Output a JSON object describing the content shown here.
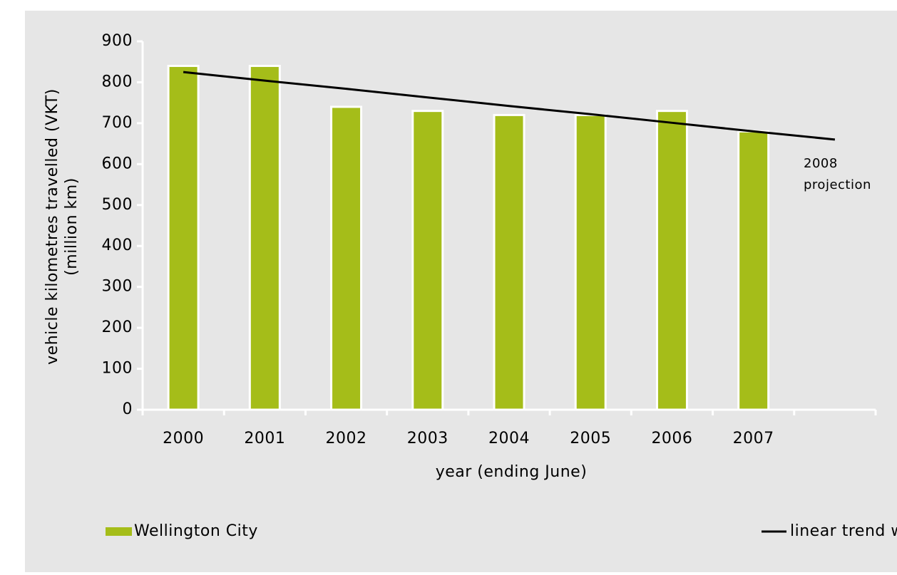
{
  "chart_data": {
    "type": "bar",
    "categories": [
      "2000",
      "2001",
      "2002",
      "2003",
      "2004",
      "2005",
      "2006",
      "2007",
      null
    ],
    "series": [
      {
        "name": "Wellington City",
        "type": "bar",
        "color": "#a5bd19",
        "values": [
          840,
          840,
          740,
          730,
          720,
          720,
          730,
          680,
          null
        ]
      },
      {
        "name": "linear trend with projection",
        "type": "line",
        "color": "#000000",
        "values": [
          825,
          804,
          784,
          763,
          742,
          722,
          701,
          680,
          660
        ]
      }
    ],
    "ylim": [
      0,
      900
    ],
    "yticks": [
      0,
      100,
      200,
      300,
      400,
      500,
      600,
      700,
      800,
      900
    ],
    "ylabel": [
      "vehicle kilometres travelled (VKT)",
      "(million km)"
    ],
    "xlabel": "year (ending June)",
    "annotation": [
      "2008",
      "projection"
    ],
    "legend": "bottom"
  }
}
